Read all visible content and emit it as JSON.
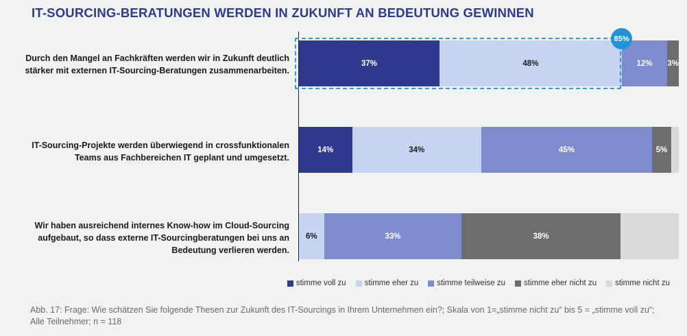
{
  "chart_data": {
    "type": "bar",
    "orientation": "horizontal-stacked-100",
    "title": "IT-SOURCING-BERATUNGEN WERDEN IN ZUKUNFT AN BEDEUTUNG GEWINNEN",
    "categories": [
      "Durch den Mangel an Fachkräften werden wir in Zukunft deutlich stärker mit externen IT-Sourcing-Beratungen zusammenarbeiten.",
      "IT-Sourcing-Projekte werden überwiegend in crossfunktionalen Teams aus Fachbereichen IT geplant und umgesetzt.",
      "Wir haben ausreichend internes Know-how im Cloud-Sourcing aufgebaut, so dass externe IT-Sourcingberatungen bei uns an Bedeutung verlieren werden."
    ],
    "series": [
      {
        "name": "stimme voll zu",
        "color": "#2f3a8f",
        "text_color": "#ffffff",
        "values": [
          37,
          14,
          0
        ]
      },
      {
        "name": "stimme eher zu",
        "color": "#c6d4f2",
        "text_color": "#1a1a1a",
        "values": [
          48,
          34,
          6
        ]
      },
      {
        "name": "stimme teilweise zu",
        "color": "#7e8cce",
        "text_color": "#ffffff",
        "values": [
          12,
          45,
          33
        ]
      },
      {
        "name": "stimme eher nicht zu",
        "color": "#6b6d6f",
        "text_color": "#ffffff",
        "values": [
          3,
          5,
          38
        ]
      },
      {
        "name": "stimme nicht zu",
        "color": "#d7d9db",
        "text_color": "#1a1a1a",
        "values": [
          0,
          2,
          14
        ]
      }
    ],
    "data_labels": [
      [
        "37%",
        "48%",
        "12%",
        "3%",
        ""
      ],
      [
        "14%",
        "34%",
        "45%",
        "5%",
        ""
      ],
      [
        "",
        "6%",
        "33%",
        "38%",
        ""
      ]
    ],
    "annotation": {
      "label": "85%",
      "category_index": 0,
      "note": "stimme voll zu + stimme eher zu"
    },
    "xlim": [
      0,
      100
    ],
    "legend_position": "bottom-right"
  },
  "caption": "Abb. 17: Frage: Wie schätzen Sie folgende Thesen zur Zukunft des IT-Sourcings in Ihrem Unternehmen ein?; Skala von 1=„stimme nicht zu“ bis 5 = „stimme voll zu“; Alle Teilnehmer; n = 118"
}
